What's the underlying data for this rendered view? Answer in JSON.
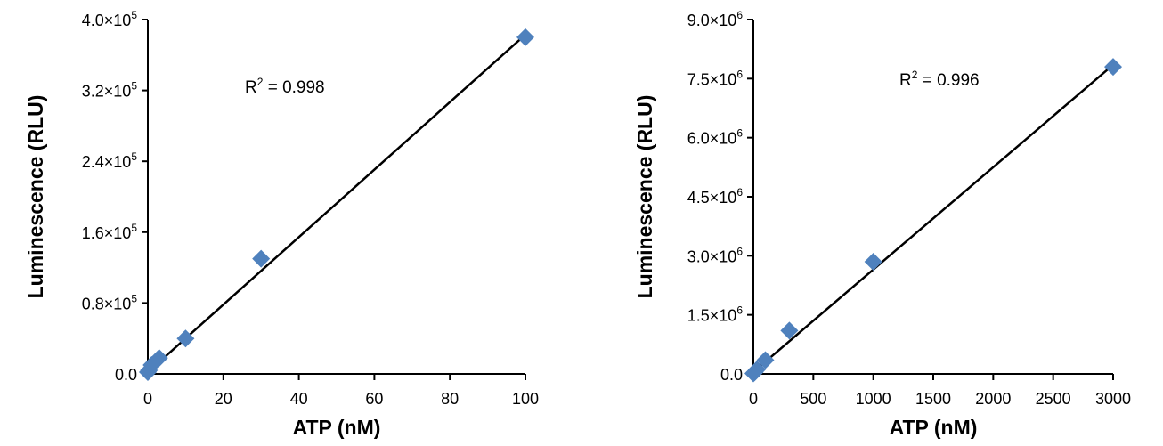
{
  "colors": {
    "marker": "#4F81BD",
    "line": "#000000",
    "axis": "#000000"
  },
  "chart_data": [
    {
      "type": "scatter",
      "xlabel": "ATP (nM)",
      "ylabel": "Luminescence (RLU)",
      "xlim": [
        0,
        100
      ],
      "ylim": [
        0,
        400000
      ],
      "x_ticks": [
        0,
        20,
        40,
        60,
        80,
        100
      ],
      "x_tick_labels": [
        "0",
        "20",
        "40",
        "60",
        "80",
        "100"
      ],
      "y_ticks": [
        0,
        80000,
        160000,
        240000,
        320000,
        400000
      ],
      "y_tick_labels": [
        {
          "mantissa": "0.0",
          "exp": ""
        },
        {
          "mantissa": "0.8×10",
          "exp": "5"
        },
        {
          "mantissa": "1.6×10",
          "exp": "5"
        },
        {
          "mantissa": "2.4×10",
          "exp": "5"
        },
        {
          "mantissa": "3.2×10",
          "exp": "5"
        },
        {
          "mantissa": "4.0×10",
          "exp": "5"
        }
      ],
      "points": [
        {
          "x": 0,
          "y": 2000
        },
        {
          "x": 0.3,
          "y": 4000
        },
        {
          "x": 1,
          "y": 10000
        },
        {
          "x": 3,
          "y": 18000
        },
        {
          "x": 10,
          "y": 40000
        },
        {
          "x": 30,
          "y": 130000
        },
        {
          "x": 100,
          "y": 380000
        }
      ],
      "trendline": {
        "x": [
          0,
          100
        ],
        "y": [
          2000,
          383000
        ]
      },
      "annotation": {
        "r_label": "R",
        "r_sup": "2",
        "r_value": " = 0.998"
      }
    },
    {
      "type": "scatter",
      "xlabel": "ATP (nM)",
      "ylabel": "Luminescence (RLU)",
      "xlim": [
        0,
        3000
      ],
      "ylim": [
        0,
        9000000
      ],
      "x_ticks": [
        0,
        500,
        1000,
        1500,
        2000,
        2500,
        3000
      ],
      "x_tick_labels": [
        "0",
        "500",
        "1000",
        "1500",
        "2000",
        "2500",
        "3000"
      ],
      "y_ticks": [
        0,
        1500000,
        3000000,
        4500000,
        6000000,
        7500000,
        9000000
      ],
      "y_tick_labels": [
        {
          "mantissa": "0.0",
          "exp": ""
        },
        {
          "mantissa": "1.5×10",
          "exp": "6"
        },
        {
          "mantissa": "3.0×10",
          "exp": "6"
        },
        {
          "mantissa": "4.5×10",
          "exp": "6"
        },
        {
          "mantissa": "6.0×10",
          "exp": "6"
        },
        {
          "mantissa": "7.5×10",
          "exp": "6"
        },
        {
          "mantissa": "9.0×10",
          "exp": "6"
        }
      ],
      "points": [
        {
          "x": 0,
          "y": 10000
        },
        {
          "x": 10,
          "y": 40000
        },
        {
          "x": 30,
          "y": 110000
        },
        {
          "x": 100,
          "y": 350000
        },
        {
          "x": 300,
          "y": 1100000
        },
        {
          "x": 1000,
          "y": 2850000
        },
        {
          "x": 3000,
          "y": 7800000
        }
      ],
      "trendline": {
        "x": [
          0,
          3000
        ],
        "y": [
          50000,
          7850000
        ]
      },
      "annotation": {
        "r_label": "R",
        "r_sup": "2",
        "r_value": " = 0.996"
      }
    }
  ]
}
